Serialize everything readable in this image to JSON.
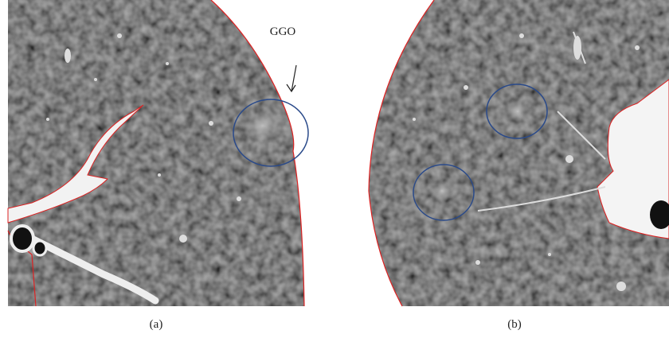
{
  "panels": [
    {
      "label": "(a)",
      "annotation": "GGO"
    },
    {
      "label": "(b)"
    }
  ]
}
